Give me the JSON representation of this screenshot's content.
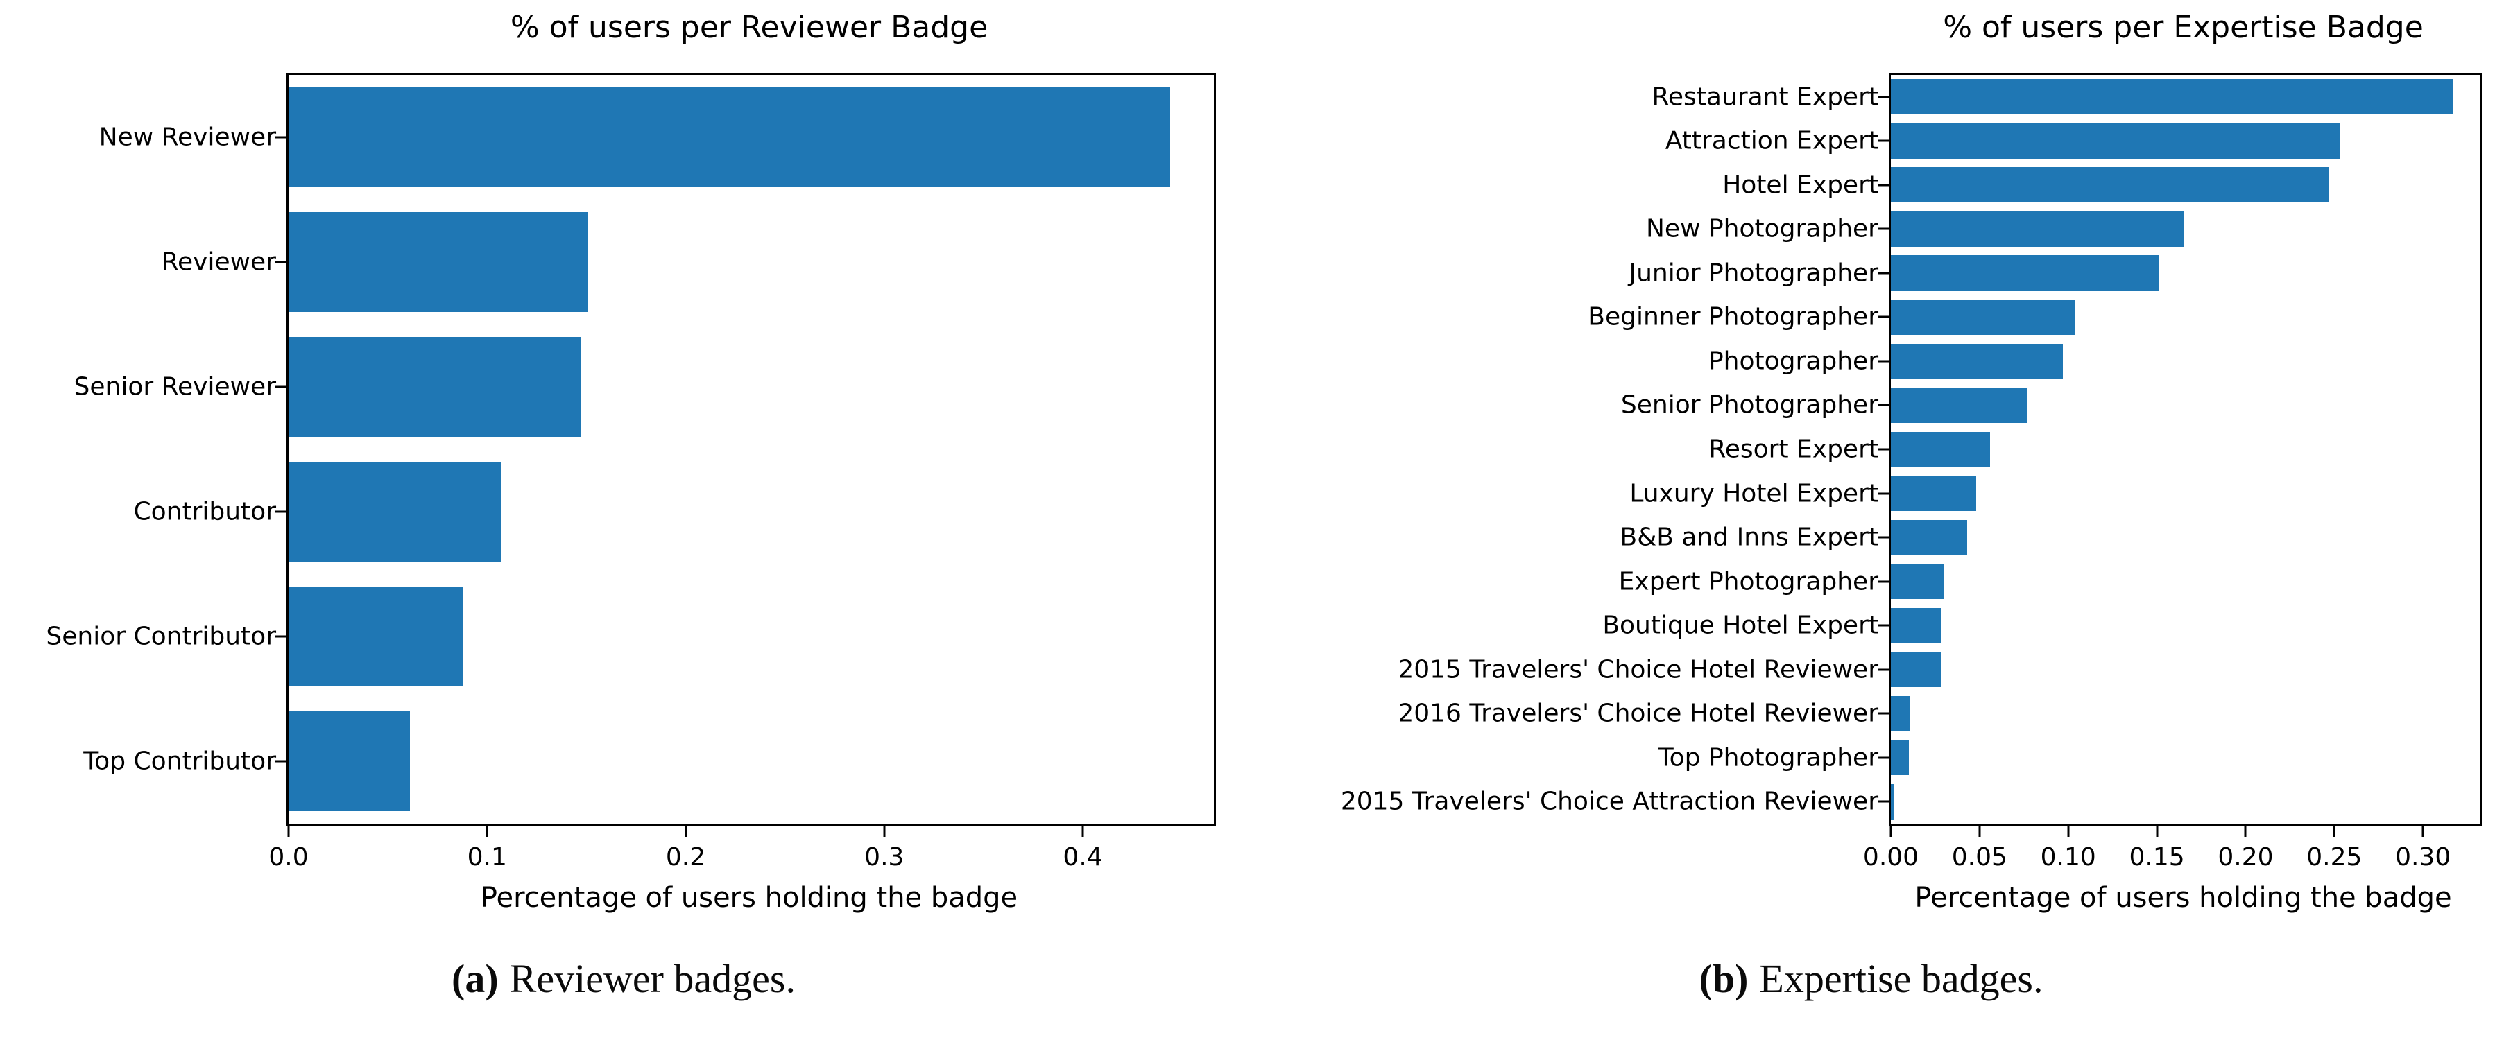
{
  "page": {
    "background": "#ffffff"
  },
  "captions": {
    "a": {
      "label": "(a)",
      "text": "Reviewer badges."
    },
    "b": {
      "label": "(b)",
      "text": "Expertise badges."
    }
  },
  "chart_data": [
    {
      "type": "bar",
      "orientation": "horizontal",
      "title": "% of users per Reviewer Badge",
      "xlabel": "Percentage of users holding the badge",
      "ylabel": "",
      "grid": false,
      "legend": null,
      "bar_color": "#1f77b4",
      "categories": [
        "New Reviewer",
        "Reviewer",
        "Senior Reviewer",
        "Contributor",
        "Senior Contributor",
        "Top Contributor"
      ],
      "values": [
        0.444,
        0.151,
        0.147,
        0.107,
        0.088,
        0.061
      ],
      "xlim": [
        0,
        0.466
      ],
      "xticks": [
        {
          "value": 0.0,
          "label": "0.0"
        },
        {
          "value": 0.1,
          "label": "0.1"
        },
        {
          "value": 0.2,
          "label": "0.2"
        },
        {
          "value": 0.3,
          "label": "0.3"
        },
        {
          "value": 0.4,
          "label": "0.4"
        }
      ]
    },
    {
      "type": "bar",
      "orientation": "horizontal",
      "title": "% of users per Expertise Badge",
      "xlabel": "Percentage of users holding the badge",
      "ylabel": "",
      "grid": false,
      "legend": null,
      "bar_color": "#1f77b4",
      "categories": [
        "Restaurant Expert",
        "Attraction Expert",
        "Hotel Expert",
        "New Photographer",
        "Junior Photographer",
        "Beginner Photographer",
        "Photographer",
        "Senior Photographer",
        "Resort Expert",
        "Luxury Hotel Expert",
        "B&B and Inns Expert",
        "Expert Photographer",
        "Boutique Hotel Expert",
        "2015 Travelers' Choice Hotel Reviewer",
        "2016 Travelers' Choice Hotel Reviewer",
        "Top Photographer",
        "2015 Travelers' Choice Attraction Reviewer"
      ],
      "values": [
        0.317,
        0.253,
        0.247,
        0.165,
        0.151,
        0.104,
        0.097,
        0.077,
        0.056,
        0.048,
        0.043,
        0.03,
        0.028,
        0.028,
        0.011,
        0.01,
        0.0015
      ],
      "xlim": [
        0,
        0.332
      ],
      "xticks": [
        {
          "value": 0.0,
          "label": "0.00"
        },
        {
          "value": 0.05,
          "label": "0.05"
        },
        {
          "value": 0.1,
          "label": "0.10"
        },
        {
          "value": 0.15,
          "label": "0.15"
        },
        {
          "value": 0.2,
          "label": "0.20"
        },
        {
          "value": 0.25,
          "label": "0.25"
        },
        {
          "value": 0.3,
          "label": "0.30"
        }
      ]
    }
  ]
}
